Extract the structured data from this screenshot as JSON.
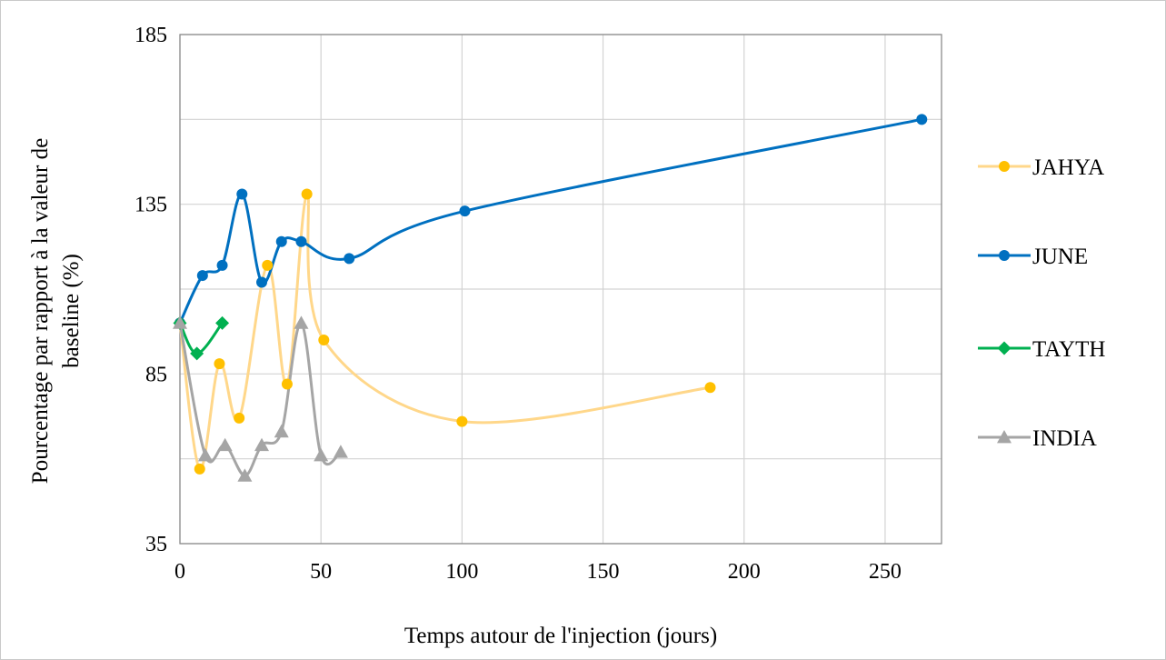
{
  "chart_data": {
    "type": "line",
    "xlabel": "Temps autour de l'injection (jours)",
    "ylabel_lines": [
      "Pourcentage par rapport à la valeur de",
      "baseline (%)"
    ],
    "xlim": [
      0,
      270
    ],
    "ylim": [
      35,
      185
    ],
    "x_ticks": [
      0,
      50,
      100,
      150,
      200,
      250
    ],
    "y_ticks": [
      35,
      85,
      135,
      185
    ],
    "y_gridlines": [
      35,
      60,
      85,
      110,
      135,
      160,
      185
    ],
    "x_gridlines": [
      0,
      50,
      100,
      150,
      200,
      250
    ],
    "legend_position": "right",
    "series": [
      {
        "name": "JAHYA",
        "color": "#FFC000",
        "line_color": "#FFD78A",
        "marker": "circle",
        "points": [
          [
            0,
            100
          ],
          [
            7,
            57
          ],
          [
            14,
            88
          ],
          [
            21,
            72
          ],
          [
            31,
            117
          ],
          [
            38,
            82
          ],
          [
            45,
            138
          ],
          [
            51,
            95
          ],
          [
            100,
            71
          ],
          [
            188,
            81
          ]
        ]
      },
      {
        "name": "JUNE",
        "color": "#0070C0",
        "line_color": "#0070C0",
        "marker": "circle",
        "points": [
          [
            0,
            100
          ],
          [
            8,
            114
          ],
          [
            15,
            117
          ],
          [
            22,
            138
          ],
          [
            29,
            112
          ],
          [
            36,
            124
          ],
          [
            43,
            124
          ],
          [
            60,
            119
          ],
          [
            101,
            133
          ],
          [
            263,
            160
          ]
        ]
      },
      {
        "name": "TAYTH",
        "color": "#00B050",
        "line_color": "#00B050",
        "marker": "diamond",
        "points": [
          [
            0,
            100
          ],
          [
            6,
            91
          ],
          [
            15,
            100
          ]
        ]
      },
      {
        "name": "INDIA",
        "color": "#A5A5A5",
        "line_color": "#A5A5A5",
        "marker": "triangle",
        "points": [
          [
            0,
            100
          ],
          [
            9,
            61
          ],
          [
            16,
            64
          ],
          [
            23,
            55
          ],
          [
            29,
            64
          ],
          [
            36,
            68
          ],
          [
            43,
            100
          ],
          [
            50,
            61
          ],
          [
            57,
            62
          ]
        ]
      }
    ]
  }
}
